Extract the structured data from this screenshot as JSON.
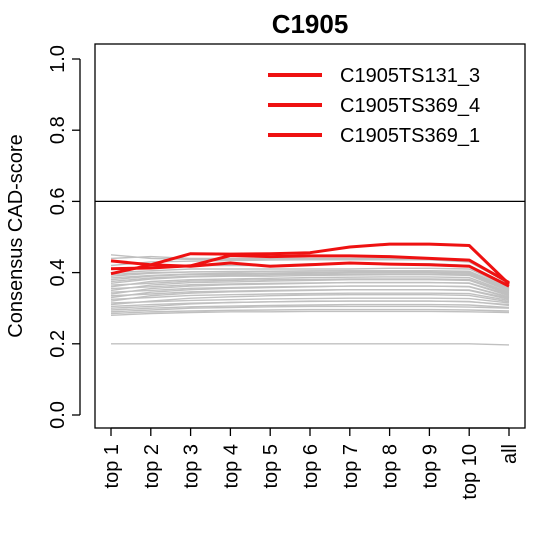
{
  "chart_data": {
    "type": "line",
    "title": "C1905",
    "xlabel": "",
    "ylabel": "Consensus CAD-score",
    "categories": [
      "top 1",
      "top 2",
      "top 3",
      "top 4",
      "top 5",
      "top 6",
      "top 7",
      "top 8",
      "top 9",
      "top 10",
      "all"
    ],
    "ylim": [
      0,
      1
    ],
    "yticks": [
      "0.0",
      "0.2",
      "0.4",
      "0.6",
      "0.8",
      "1.0"
    ],
    "reference_line": 0.6,
    "grid": false,
    "legend_position": "top-right",
    "highlight_color": "#ee1111",
    "background_color": "#c0c0c0",
    "series": [
      {
        "name": "C1905TS131_3",
        "highlight": true,
        "values": [
          0.433,
          0.422,
          0.418,
          0.427,
          0.418,
          0.422,
          0.427,
          0.424,
          0.422,
          0.418,
          0.362
        ]
      },
      {
        "name": "C1905TS369_4",
        "highlight": true,
        "values": [
          0.397,
          0.422,
          0.453,
          0.452,
          0.453,
          0.456,
          0.472,
          0.48,
          0.48,
          0.476,
          0.368
        ]
      },
      {
        "name": "C1905TS369_1",
        "highlight": true,
        "values": [
          0.411,
          0.413,
          0.419,
          0.448,
          0.445,
          0.447,
          0.447,
          0.445,
          0.44,
          0.435,
          0.372
        ]
      },
      {
        "highlight": false,
        "values": [
          0.44,
          0.445,
          0.44,
          0.44,
          0.44,
          0.44,
          0.44,
          0.44,
          0.44,
          0.43,
          0.37
        ]
      },
      {
        "highlight": false,
        "values": [
          0.41,
          0.415,
          0.42,
          0.42,
          0.42,
          0.425,
          0.425,
          0.425,
          0.425,
          0.42,
          0.365
        ]
      },
      {
        "highlight": false,
        "values": [
          0.4,
          0.405,
          0.41,
          0.41,
          0.41,
          0.41,
          0.41,
          0.412,
          0.412,
          0.41,
          0.36
        ]
      },
      {
        "highlight": false,
        "values": [
          0.39,
          0.398,
          0.402,
          0.402,
          0.404,
          0.405,
          0.405,
          0.405,
          0.405,
          0.403,
          0.355
        ]
      },
      {
        "highlight": false,
        "values": [
          0.38,
          0.39,
          0.395,
          0.395,
          0.398,
          0.398,
          0.4,
          0.4,
          0.4,
          0.398,
          0.352
        ]
      },
      {
        "highlight": false,
        "values": [
          0.37,
          0.382,
          0.388,
          0.39,
          0.39,
          0.392,
          0.393,
          0.394,
          0.394,
          0.392,
          0.348
        ]
      },
      {
        "highlight": false,
        "values": [
          0.36,
          0.375,
          0.38,
          0.382,
          0.384,
          0.386,
          0.387,
          0.388,
          0.388,
          0.386,
          0.345
        ]
      },
      {
        "highlight": false,
        "values": [
          0.35,
          0.365,
          0.372,
          0.374,
          0.376,
          0.378,
          0.38,
          0.38,
          0.38,
          0.378,
          0.34
        ]
      },
      {
        "highlight": false,
        "values": [
          0.34,
          0.355,
          0.362,
          0.366,
          0.368,
          0.37,
          0.372,
          0.372,
          0.372,
          0.37,
          0.335
        ]
      },
      {
        "highlight": false,
        "values": [
          0.33,
          0.345,
          0.352,
          0.356,
          0.358,
          0.36,
          0.362,
          0.362,
          0.362,
          0.36,
          0.33
        ]
      },
      {
        "highlight": false,
        "values": [
          0.32,
          0.335,
          0.342,
          0.346,
          0.348,
          0.35,
          0.352,
          0.352,
          0.352,
          0.35,
          0.325
        ]
      },
      {
        "highlight": false,
        "values": [
          0.31,
          0.32,
          0.328,
          0.332,
          0.335,
          0.337,
          0.338,
          0.338,
          0.338,
          0.336,
          0.318
        ]
      },
      {
        "highlight": false,
        "values": [
          0.3,
          0.305,
          0.312,
          0.316,
          0.318,
          0.32,
          0.32,
          0.32,
          0.32,
          0.318,
          0.31
        ]
      },
      {
        "highlight": false,
        "values": [
          0.29,
          0.295,
          0.3,
          0.302,
          0.304,
          0.305,
          0.305,
          0.305,
          0.305,
          0.303,
          0.3
        ]
      },
      {
        "highlight": false,
        "values": [
          0.285,
          0.29,
          0.292,
          0.294,
          0.295,
          0.296,
          0.296,
          0.296,
          0.296,
          0.295,
          0.292
        ]
      },
      {
        "highlight": false,
        "values": [
          0.28,
          0.285,
          0.288,
          0.29,
          0.29,
          0.291,
          0.291,
          0.291,
          0.291,
          0.29,
          0.288
        ]
      },
      {
        "highlight": false,
        "values": [
          0.42,
          0.43,
          0.432,
          0.434,
          0.435,
          0.436,
          0.436,
          0.436,
          0.436,
          0.434,
          0.368
        ]
      },
      {
        "highlight": false,
        "values": [
          0.395,
          0.4,
          0.402,
          0.403,
          0.404,
          0.404,
          0.405,
          0.405,
          0.405,
          0.404,
          0.357
        ]
      },
      {
        "highlight": false,
        "values": [
          0.375,
          0.385,
          0.39,
          0.392,
          0.394,
          0.395,
          0.396,
          0.396,
          0.396,
          0.395,
          0.35
        ]
      },
      {
        "highlight": false,
        "values": [
          0.355,
          0.36,
          0.366,
          0.368,
          0.37,
          0.371,
          0.372,
          0.372,
          0.372,
          0.371,
          0.338
        ]
      },
      {
        "highlight": false,
        "values": [
          0.345,
          0.35,
          0.356,
          0.358,
          0.36,
          0.361,
          0.362,
          0.362,
          0.362,
          0.361,
          0.332
        ]
      },
      {
        "highlight": false,
        "values": [
          0.325,
          0.33,
          0.336,
          0.338,
          0.34,
          0.341,
          0.342,
          0.342,
          0.342,
          0.341,
          0.322
        ]
      },
      {
        "highlight": false,
        "values": [
          0.315,
          0.318,
          0.322,
          0.324,
          0.326,
          0.327,
          0.328,
          0.328,
          0.328,
          0.327,
          0.315
        ]
      },
      {
        "highlight": false,
        "values": [
          0.295,
          0.3,
          0.304,
          0.306,
          0.308,
          0.309,
          0.31,
          0.31,
          0.31,
          0.309,
          0.302
        ]
      },
      {
        "highlight": false,
        "values": [
          0.385,
          0.392,
          0.396,
          0.398,
          0.399,
          0.4,
          0.401,
          0.401,
          0.401,
          0.4,
          0.354
        ]
      },
      {
        "highlight": false,
        "values": [
          0.365,
          0.37,
          0.376,
          0.378,
          0.38,
          0.381,
          0.382,
          0.382,
          0.382,
          0.381,
          0.343
        ]
      },
      {
        "highlight": false,
        "values": [
          0.335,
          0.34,
          0.346,
          0.348,
          0.35,
          0.351,
          0.352,
          0.352,
          0.352,
          0.351,
          0.328
        ]
      },
      {
        "highlight": false,
        "values": [
          0.305,
          0.31,
          0.314,
          0.316,
          0.318,
          0.319,
          0.32,
          0.32,
          0.32,
          0.319,
          0.308
        ]
      },
      {
        "highlight": false,
        "values": [
          0.45,
          0.44,
          0.437,
          0.437,
          0.436,
          0.436,
          0.436,
          0.436,
          0.436,
          0.43,
          0.372
        ]
      },
      {
        "highlight": false,
        "values": [
          0.2,
          0.2,
          0.2,
          0.2,
          0.2,
          0.2,
          0.2,
          0.2,
          0.2,
          0.2,
          0.197
        ]
      }
    ]
  }
}
